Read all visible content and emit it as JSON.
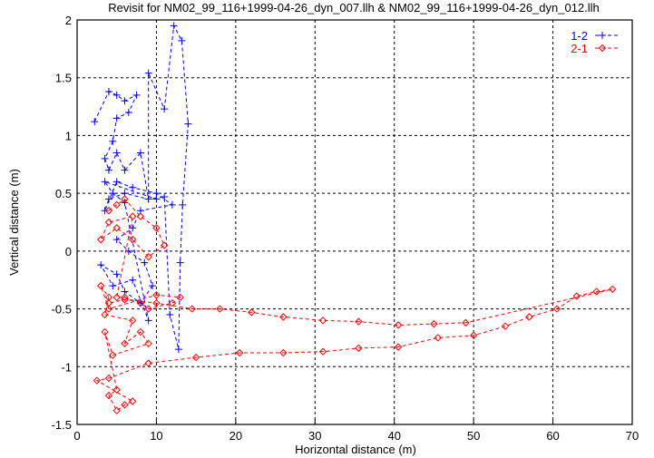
{
  "chart_data": {
    "type": "scatter",
    "title": "Revisit for NM02_99_116+1999-04-26_dyn_007.llh & NM02_99_116+1999-04-26_dyn_012.llh",
    "xlabel": "Horizontal distance (m)",
    "ylabel": "Vertical distance (m)",
    "xlim": [
      0,
      70
    ],
    "ylim": [
      -1.5,
      2
    ],
    "xticks": [
      "0",
      "10",
      "20",
      "30",
      "40",
      "50",
      "60",
      "70"
    ],
    "yticks": [
      "-1.5",
      "-1",
      "-0.5",
      "0",
      "0.5",
      "1",
      "1.5",
      "2"
    ],
    "grid": true,
    "legend_position": "top-right",
    "series": [
      {
        "name": "1-2",
        "color": "#0000ff",
        "marker": "plus",
        "points": [
          [
            2.2,
            1.12
          ],
          [
            4,
            1.38
          ],
          [
            5,
            1.35
          ],
          [
            6,
            1.3
          ],
          [
            7.5,
            1.35
          ],
          [
            6.5,
            1.2
          ],
          [
            5,
            1.15
          ],
          [
            4.5,
            0.95
          ],
          [
            3.5,
            0.8
          ],
          [
            4,
            0.7
          ],
          [
            5,
            0.85
          ],
          [
            6,
            0.7
          ],
          [
            8,
            0.85
          ],
          [
            9,
            0.45
          ],
          [
            9,
            1.54
          ],
          [
            11,
            1.23
          ],
          [
            12.2,
            1.95
          ],
          [
            13.2,
            1.82
          ],
          [
            14,
            1.1
          ],
          [
            13.3,
            0.4
          ],
          [
            13,
            -0.1
          ],
          [
            12.8,
            -0.85
          ],
          [
            11.7,
            -0.55
          ],
          [
            11,
            0.47
          ],
          [
            9,
            0.45
          ],
          [
            6,
            0.5
          ],
          [
            4,
            0.45
          ],
          [
            3.5,
            0.35
          ],
          [
            5,
            0.6
          ],
          [
            7,
            0.55
          ],
          [
            10,
            0.5
          ],
          [
            12,
            0.4
          ],
          [
            8,
            0.35
          ],
          [
            7,
            0.2
          ],
          [
            5,
            0.1
          ],
          [
            6.5,
            0
          ],
          [
            8.5,
            -0.1
          ],
          [
            9.5,
            -0.3
          ],
          [
            8,
            -0.45
          ],
          [
            6,
            -0.35
          ],
          [
            5,
            -0.2
          ],
          [
            3,
            -0.12
          ],
          [
            4.5,
            -0.3
          ],
          [
            7,
            -0.25
          ],
          [
            9,
            -0.6
          ],
          [
            6,
            0.42
          ],
          [
            4.5,
            0.5
          ],
          [
            3.5,
            0.6
          ],
          [
            10,
            0.45
          ]
        ]
      },
      {
        "name": "2-1",
        "color": "#ff0000",
        "marker": "diamond",
        "points": [
          [
            4,
            0.35
          ],
          [
            5,
            0.4
          ],
          [
            6,
            0.45
          ],
          [
            8,
            0.3
          ],
          [
            10,
            0.2
          ],
          [
            11,
            0.05
          ],
          [
            9,
            -0.05
          ],
          [
            7,
            0.1
          ],
          [
            5,
            0.2
          ],
          [
            3,
            0.1
          ],
          [
            4,
            0.25
          ],
          [
            7,
            0.3
          ],
          [
            5,
            -0.4
          ],
          [
            6,
            -0.4
          ],
          [
            8,
            -0.45
          ],
          [
            9,
            -0.5
          ],
          [
            12,
            -0.45
          ],
          [
            13,
            -0.4
          ],
          [
            10,
            -0.38
          ],
          [
            4,
            -0.5
          ],
          [
            3,
            -0.3
          ],
          [
            4,
            -0.4
          ],
          [
            3.5,
            -0.55
          ],
          [
            7,
            -0.6
          ],
          [
            6,
            -0.8
          ],
          [
            8,
            -0.7
          ],
          [
            9,
            -0.8
          ],
          [
            4.5,
            -0.9
          ],
          [
            3.5,
            -0.7
          ],
          [
            5,
            -1.2
          ],
          [
            4,
            -1.25
          ],
          [
            5,
            -1.38
          ],
          [
            6,
            -1.33
          ],
          [
            7,
            -1.3
          ],
          [
            2.5,
            -1.12
          ],
          [
            4,
            -1.1
          ],
          [
            9,
            -0.97
          ],
          [
            15,
            -0.92
          ],
          [
            20.5,
            -0.88
          ],
          [
            26,
            -0.88
          ],
          [
            31,
            -0.87
          ],
          [
            35.5,
            -0.84
          ],
          [
            40.5,
            -0.83
          ],
          [
            45.5,
            -0.75
          ],
          [
            50,
            -0.73
          ],
          [
            54,
            -0.65
          ],
          [
            57,
            -0.57
          ],
          [
            60.5,
            -0.5
          ],
          [
            63,
            -0.39
          ],
          [
            65.5,
            -0.35
          ],
          [
            67.5,
            -0.33
          ],
          [
            49,
            -0.62
          ],
          [
            45,
            -0.63
          ],
          [
            40.5,
            -0.64
          ],
          [
            35.5,
            -0.61
          ],
          [
            31,
            -0.6
          ],
          [
            26,
            -0.57
          ],
          [
            22,
            -0.53
          ],
          [
            18,
            -0.5
          ],
          [
            14.5,
            -0.5
          ],
          [
            10,
            -0.45
          ],
          [
            6,
            -0.42
          ],
          [
            4,
            -0.45
          ]
        ]
      }
    ]
  }
}
